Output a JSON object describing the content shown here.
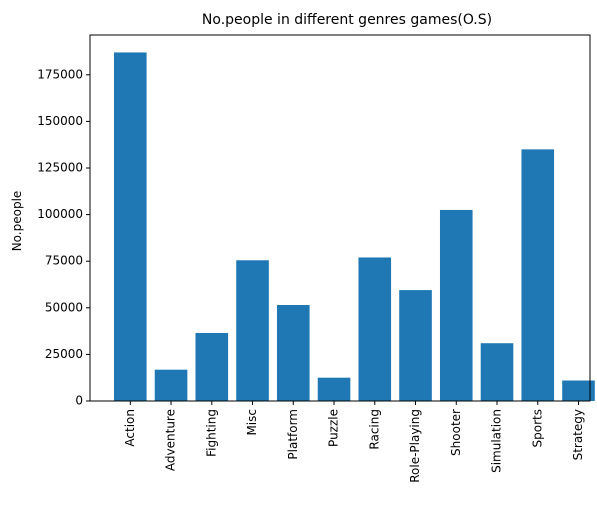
{
  "chart_data": {
    "type": "bar",
    "title": "No.people in different genres games(O.S)",
    "xlabel": "",
    "ylabel": "No.people",
    "categories": [
      "Action",
      "Adventure",
      "Fighting",
      "Misc",
      "Platform",
      "Puzzle",
      "Racing",
      "Role-Playing",
      "Shooter",
      "Simulation",
      "Sports",
      "Strategy"
    ],
    "values": [
      187000,
      16800,
      36500,
      75500,
      51500,
      12500,
      77000,
      59500,
      102500,
      31000,
      135000,
      11000
    ],
    "ylim": [
      0,
      196350
    ],
    "yticks": [
      0,
      25000,
      50000,
      75000,
      100000,
      125000,
      150000,
      175000
    ],
    "ytick_labels": [
      "0",
      "25000",
      "50000",
      "75000",
      "100000",
      "125000",
      "150000",
      "175000"
    ],
    "bar_color": "#1f77b4",
    "grid": false,
    "legend": "none"
  }
}
